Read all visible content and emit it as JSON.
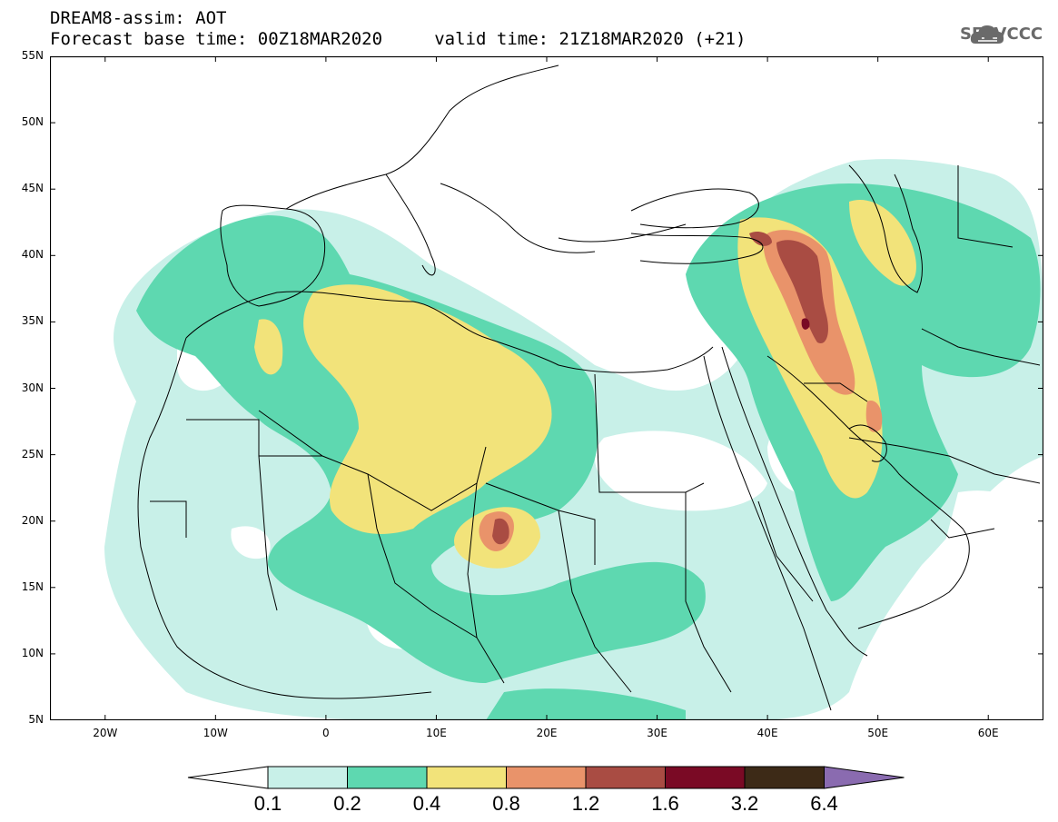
{
  "title": {
    "line1": "DREAM8-assim: AOT",
    "line2": "Forecast base time: 00Z18MAR2020     valid time: 21Z18MAR2020 (+21)"
  },
  "logo": {
    "text": "SEEVCCC",
    "icon": "cloud-icon"
  },
  "map": {
    "lon_range": [
      -25,
      65
    ],
    "lat_range": [
      5,
      55
    ],
    "lat_labels": [
      "55N",
      "50N",
      "45N",
      "40N",
      "35N",
      "30N",
      "25N",
      "20N",
      "15N",
      "10N",
      "5N"
    ],
    "lat_values": [
      55,
      50,
      45,
      40,
      35,
      30,
      25,
      20,
      15,
      10,
      5
    ],
    "lon_labels": [
      "20W",
      "10W",
      "0",
      "10E",
      "20E",
      "30E",
      "40E",
      "50E",
      "60E"
    ],
    "lon_values": [
      -20,
      -10,
      0,
      10,
      20,
      30,
      40,
      50,
      60
    ]
  },
  "colorbar": {
    "levels": [
      "0.1",
      "0.2",
      "0.4",
      "0.8",
      "1.2",
      "1.6",
      "3.2",
      "6.4"
    ],
    "colors": [
      "#c8f0e8",
      "#5ed8b0",
      "#f2e37a",
      "#e9936a",
      "#a94c43",
      "#7a0a25",
      "#3d2a17",
      "#8a6bb0"
    ],
    "under_color": "#ffffff"
  }
}
